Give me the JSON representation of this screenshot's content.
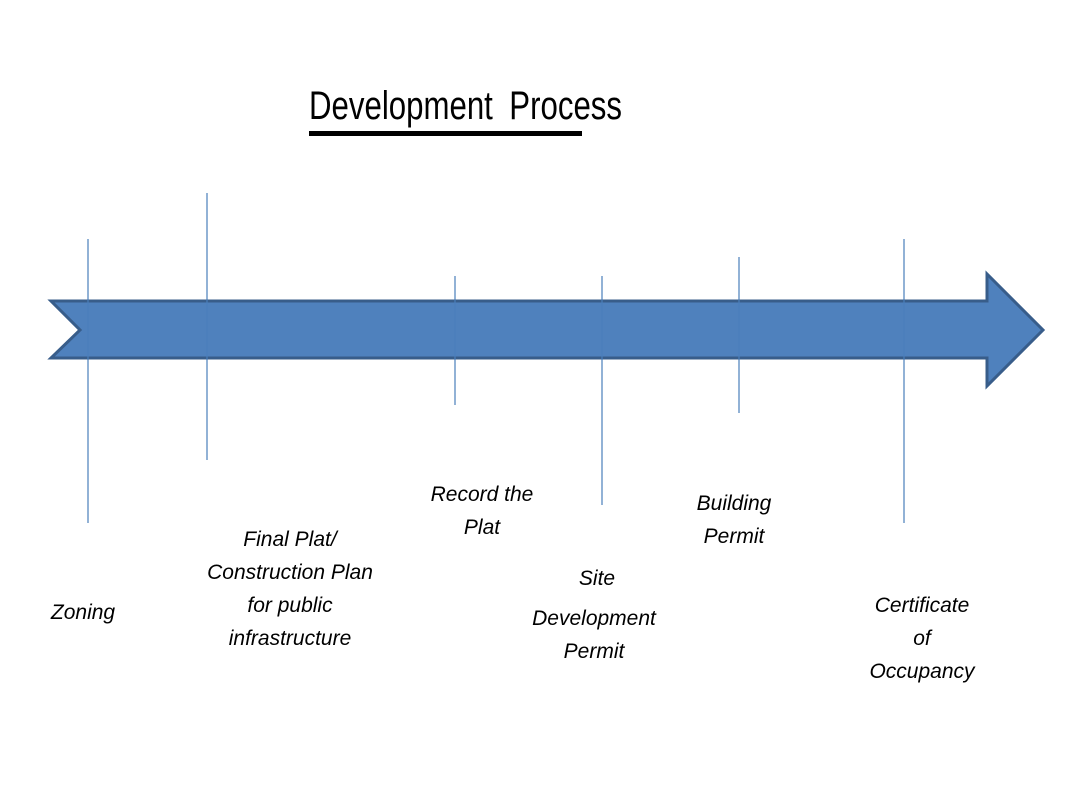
{
  "title": "Development Process",
  "colors": {
    "arrow_fill": "#4f81bd",
    "arrow_stroke": "#385d8a",
    "marker_line": "#4a7ebb"
  },
  "steps": [
    {
      "lines": [
        "Zoning"
      ]
    },
    {
      "lines": [
        "Final Plat/",
        "Construction Plan",
        "for public",
        "infrastructure"
      ]
    },
    {
      "lines": [
        "Record the",
        "Plat"
      ]
    },
    {
      "lines": [
        "Site"
      ]
    },
    {
      "lines": [
        "Development",
        "Permit"
      ]
    },
    {
      "lines": [
        "Building",
        "Permit"
      ]
    },
    {
      "lines": [
        "Certificate",
        "of",
        "Occupancy"
      ]
    }
  ]
}
